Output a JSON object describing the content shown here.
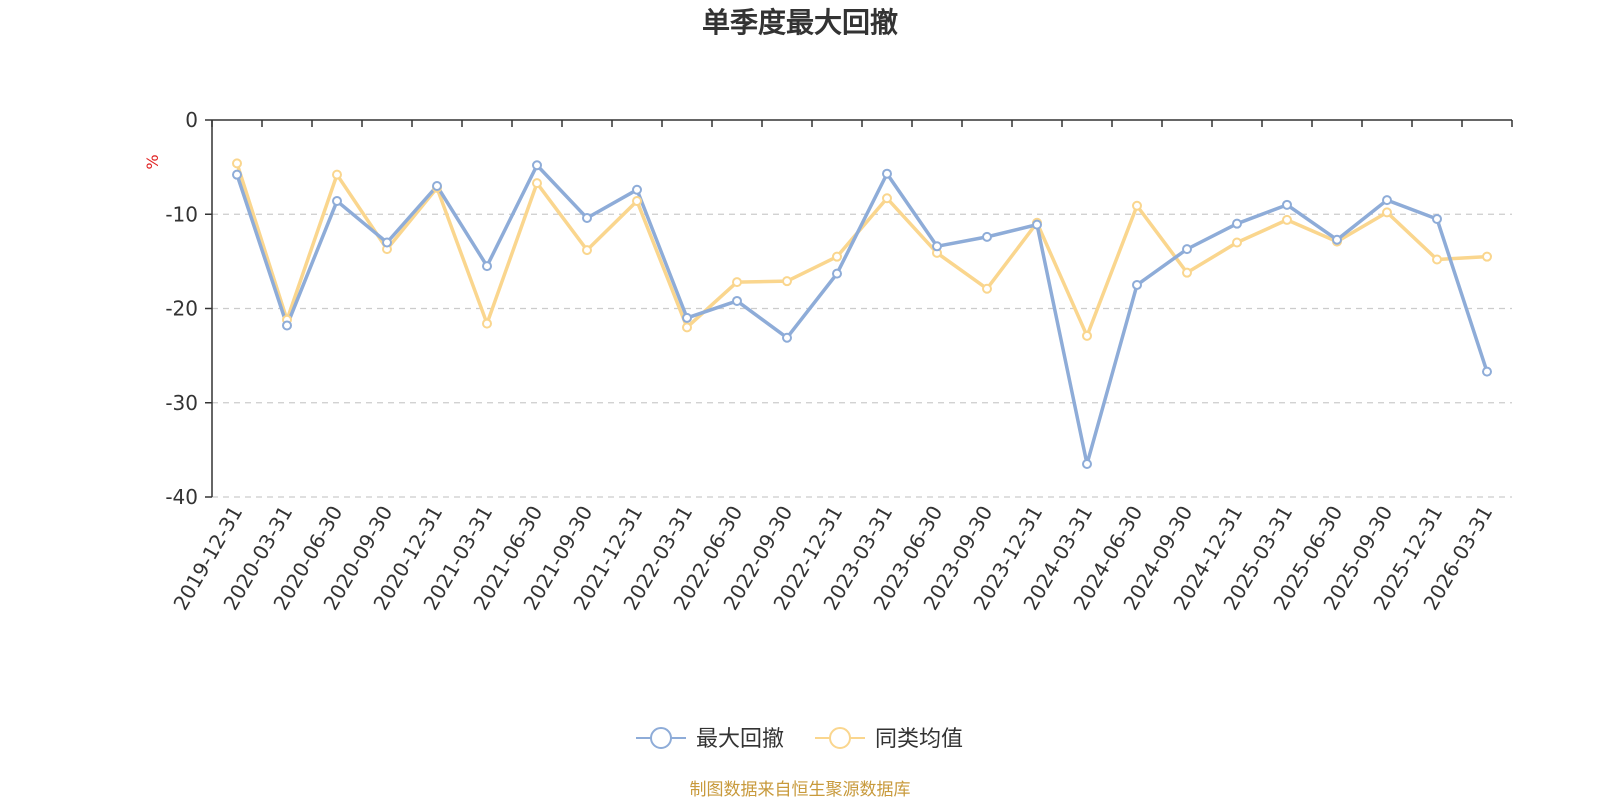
{
  "chart_data": {
    "type": "line",
    "title": "单季度最大回撤",
    "y_unit": "%",
    "ylim": [
      -40,
      0
    ],
    "y_ticks": [
      0,
      -10,
      -20,
      -30,
      -40
    ],
    "grid": "horizontal dashed",
    "legend_position": "bottom-center",
    "categories": [
      "2019-12-31",
      "2020-03-31",
      "2020-06-30",
      "2020-09-30",
      "2020-12-31",
      "2021-03-31",
      "2021-06-30",
      "2021-09-30",
      "2021-12-31",
      "2022-03-31",
      "2022-06-30",
      "2022-09-30",
      "2022-12-31",
      "2023-03-31",
      "2023-06-30",
      "2023-09-30",
      "2023-12-31",
      "2024-03-31",
      "2024-06-30",
      "2024-09-30",
      "2024-12-31",
      "2025-03-31",
      "2025-06-30",
      "2025-09-30",
      "2025-12-31",
      "2026-03-31"
    ],
    "series": [
      {
        "name": "最大回撤",
        "color": "#8eacd8",
        "values": [
          -5.8,
          -21.8,
          -8.6,
          -13.0,
          -7.0,
          -15.5,
          -4.8,
          -10.4,
          -7.4,
          -21.0,
          -19.2,
          -23.1,
          -16.3,
          -5.7,
          -13.4,
          -12.4,
          -11.1,
          -36.5,
          -17.5,
          -13.7,
          -11.0,
          -9.0,
          -12.7,
          -8.5,
          -10.5,
          -26.7
        ]
      },
      {
        "name": "同类均值",
        "color": "#fad68e",
        "values": [
          -4.6,
          -21.2,
          -5.8,
          -13.7,
          -7.2,
          -21.6,
          -6.7,
          -13.8,
          -8.6,
          -22.0,
          -17.2,
          -17.1,
          -14.5,
          -8.3,
          -14.1,
          -17.9,
          -10.9,
          -22.9,
          -9.1,
          -16.2,
          -13.0,
          -10.6,
          -12.9,
          -9.8,
          -14.8,
          -14.5
        ]
      }
    ]
  },
  "source_note": {
    "text": "制图数据来自恒生聚源数据库",
    "color": "#c89a3c"
  },
  "axis_color": "#333333",
  "unit_color": "#e02020",
  "grid_color": "#cccccc"
}
